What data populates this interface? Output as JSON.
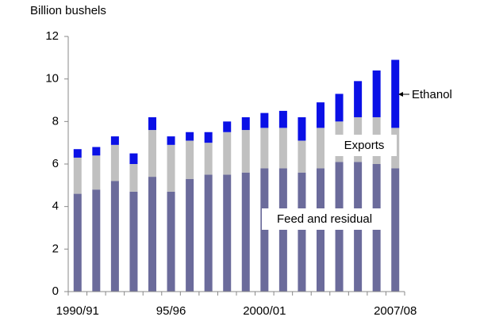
{
  "chart_data": {
    "type": "stacked_bar",
    "y_label": "Billion bushels",
    "categories": [
      "1990/91",
      null,
      null,
      null,
      null,
      "95/96",
      null,
      null,
      null,
      null,
      "2000/01",
      null,
      null,
      null,
      null,
      null,
      null,
      "2007/08"
    ],
    "series": [
      {
        "name": "Feed and residual",
        "color": "#6b6b9b",
        "values": [
          4.6,
          4.8,
          5.2,
          4.7,
          5.4,
          4.7,
          5.3,
          5.5,
          5.5,
          5.6,
          5.8,
          5.8,
          5.6,
          5.8,
          6.1,
          6.1,
          6.0,
          5.8
        ]
      },
      {
        "name": "Exports",
        "color": "#c0c0c0",
        "values": [
          1.7,
          1.6,
          1.7,
          1.3,
          2.2,
          2.2,
          1.8,
          1.5,
          2.0,
          2.0,
          1.9,
          1.9,
          1.5,
          1.9,
          1.9,
          2.1,
          2.2,
          1.9
        ]
      },
      {
        "name": "Ethanol",
        "color": "#0a10e6",
        "values": [
          0.4,
          0.4,
          0.4,
          0.5,
          0.6,
          0.4,
          0.4,
          0.5,
          0.5,
          0.6,
          0.7,
          0.8,
          1.1,
          1.2,
          1.3,
          1.7,
          2.2,
          3.2
        ]
      }
    ],
    "ylim": [
      0,
      12
    ],
    "yticks": [
      0,
      2,
      4,
      6,
      8,
      10,
      12
    ],
    "grid": false
  }
}
